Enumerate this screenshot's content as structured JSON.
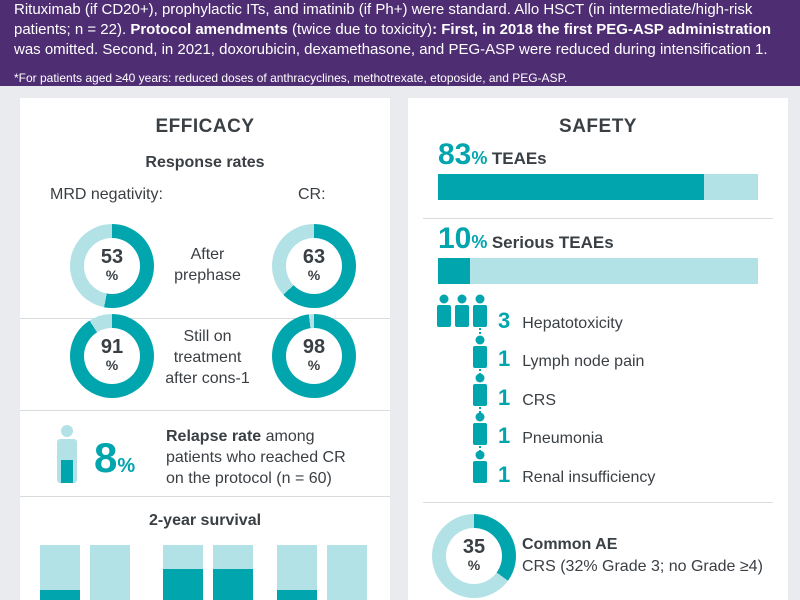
{
  "banner": {
    "line1": "Rituximab (if CD20+), prophylactic ITs, and imatinib (if Ph+) were standard. Allo HSCT (in intermediate/high-risk",
    "line2a": "patients; n = 22). ",
    "line2b": "Protocol amendments",
    "line2c": " (twice due to toxicity)",
    "line2d": ": First, in 2018 the first PEG-ASP administration",
    "line3": "was omitted. Second, in 2021, doxorubicin, dexamethasone, and PEG-ASP were reduced during intensification 1.",
    "note": "*For patients aged ≥40 years: reduced doses of anthracyclines, methotrexate, etoposide, and PEG-ASP."
  },
  "efficacy": {
    "title": "EFFICACY",
    "response_title": "Response rates",
    "mrd_label": "MRD negativity:",
    "cr_label": "CR:",
    "row1_label_a": "After",
    "row1_label_b": "prephase",
    "row2_label_a": "Still on",
    "row2_label_b": "treatment",
    "row2_label_c": "after cons-1",
    "donuts": [
      {
        "value": 53,
        "unit": "%"
      },
      {
        "value": 63,
        "unit": "%"
      },
      {
        "value": 91,
        "unit": "%"
      },
      {
        "value": 98,
        "unit": "%"
      }
    ],
    "relapse_value": "8",
    "relapse_unit": "%",
    "relapse_bold": "Relapse rate",
    "relapse_rest1": " among",
    "relapse_line2": "patients who reached CR",
    "relapse_line3": "on the protocol (n = 60)",
    "survival_title": "2-year survival",
    "survival_bars": [
      0.25,
      0.05,
      0.6,
      0.6,
      0.25,
      0.0
    ]
  },
  "safety": {
    "title": "SAFETY",
    "teae_value": "83",
    "teae_unit": "%",
    "teae_label": "TEAEs",
    "teae_fraction": 0.83,
    "serious_value": "10",
    "serious_unit": "%",
    "serious_label": "Serious TEAEs",
    "serious_fraction": 0.1,
    "events": [
      {
        "count": "3",
        "label": "Hepatotoxicity"
      },
      {
        "count": "1",
        "label": "Lymph node pain"
      },
      {
        "count": "1",
        "label": "CRS"
      },
      {
        "count": "1",
        "label": "Pneumonia"
      },
      {
        "count": "1",
        "label": "Renal insufficiency"
      }
    ],
    "common_value": "35",
    "common_unit": "%",
    "common_title": "Common AE",
    "common_desc": "CRS (32% Grade 3; no Grade ≥4)"
  },
  "colors": {
    "teal": "#00a5ad",
    "light_teal": "#b3e2e6",
    "purple": "#4f2d73"
  }
}
